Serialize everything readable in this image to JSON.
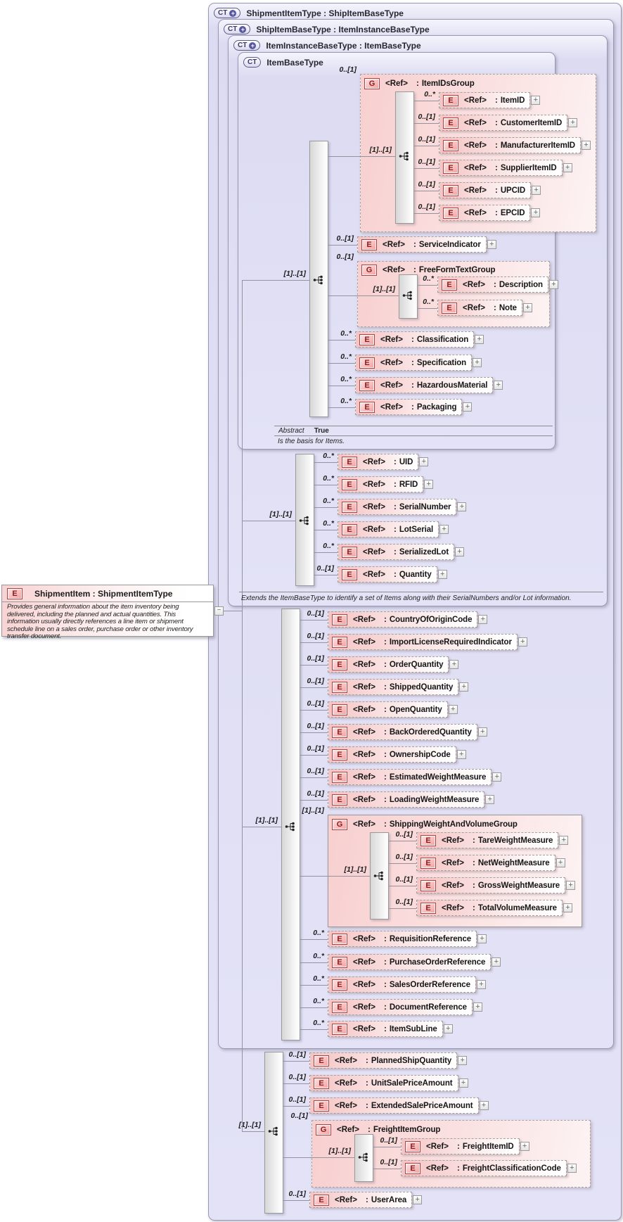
{
  "labels": {
    "ref": "<Ref>",
    "colon": ":",
    "expand": "+",
    "collapse": "−"
  },
  "badges": {
    "element": "E",
    "group": "G"
  },
  "shipment_item_box": {
    "badge": "E",
    "title": "ShipmentItem : ShipmentItemType",
    "description": "Provides general information about the item inventory being delivered, including the planned and actual quantities.  This information usually directly references a line item or shipment schedule line on a sales order, purchase order or other inventory transfer document."
  },
  "containers": [
    {
      "id": "l1",
      "badge": "CT",
      "plus": "+",
      "title": "ShipmentItemType : ShipItemBaseType"
    },
    {
      "id": "l2",
      "badge": "CT",
      "plus": "+",
      "title": "ShipItemBaseType : ItemInstanceBaseType"
    },
    {
      "id": "l3",
      "badge": "CT",
      "plus": "+",
      "title": "ItemInstanceBaseType : ItemBaseType"
    },
    {
      "id": "l4",
      "badge": "CT",
      "title": "ItemBaseType"
    }
  ],
  "sequences": [
    {
      "id": "seq_itembase",
      "cardinality": "[1]..[1]"
    },
    {
      "id": "seq_iteminstance",
      "cardinality": "[1]..[1]"
    },
    {
      "id": "seq_shipitem",
      "cardinality": "[1]..[1]"
    },
    {
      "id": "seq_shipmentitem",
      "cardinality": "[1]..[1]"
    },
    {
      "id": "seq_itemids",
      "cardinality": "[1]..[1]"
    },
    {
      "id": "seq_freeform",
      "cardinality": "[1]..[1]"
    },
    {
      "id": "seq_shipweight",
      "cardinality": "[1]..[1]"
    },
    {
      "id": "seq_freight",
      "cardinality": "[1]..[1]"
    }
  ],
  "groups": [
    {
      "id": "g_itemids",
      "name": "ItemIDsGroup",
      "cardinality": "0..[1]"
    },
    {
      "id": "g_freeform",
      "name": "FreeFormTextGroup",
      "cardinality": "0..[1]"
    },
    {
      "id": "g_shipweight",
      "name": "ShippingWeightAndVolumeGroup",
      "cardinality": "[1]..[1]"
    },
    {
      "id": "g_freight",
      "name": "FreightItemGroup",
      "cardinality": "0..[1]"
    }
  ],
  "elements": [
    {
      "id": "itemid",
      "name": "ItemID",
      "cardinality": "0..*"
    },
    {
      "id": "customeritemid",
      "name": "CustomerItemID",
      "cardinality": "0..[1]"
    },
    {
      "id": "manufactureritemid",
      "name": "ManufacturerItemID",
      "cardinality": "0..[1]"
    },
    {
      "id": "supplieritemid",
      "name": "SupplierItemID",
      "cardinality": "0..[1]"
    },
    {
      "id": "upcid",
      "name": "UPCID",
      "cardinality": "0..[1]"
    },
    {
      "id": "epcid",
      "name": "EPCID",
      "cardinality": "0..[1]"
    },
    {
      "id": "serviceindicator",
      "name": "ServiceIndicator",
      "cardinality": "0..[1]"
    },
    {
      "id": "description",
      "name": "Description",
      "cardinality": "0..*"
    },
    {
      "id": "note",
      "name": "Note",
      "cardinality": "0..*"
    },
    {
      "id": "classification",
      "name": "Classification",
      "cardinality": "0..*"
    },
    {
      "id": "specification",
      "name": "Specification",
      "cardinality": "0..*"
    },
    {
      "id": "hazardousmaterial",
      "name": "HazardousMaterial",
      "cardinality": "0..*"
    },
    {
      "id": "packaging",
      "name": "Packaging",
      "cardinality": "0..*"
    },
    {
      "id": "uid",
      "name": "UID",
      "cardinality": "0..*"
    },
    {
      "id": "rfid",
      "name": "RFID",
      "cardinality": "0..*"
    },
    {
      "id": "serialnumber",
      "name": "SerialNumber",
      "cardinality": "0..*"
    },
    {
      "id": "lotserial",
      "name": "LotSerial",
      "cardinality": "0..*"
    },
    {
      "id": "serializedlot",
      "name": "SerializedLot",
      "cardinality": "0..*"
    },
    {
      "id": "quantity",
      "name": "Quantity",
      "cardinality": "0..[1]"
    },
    {
      "id": "countryoforigincode",
      "name": "CountryOfOriginCode",
      "cardinality": "0..[1]"
    },
    {
      "id": "importlicenserequiredindicator",
      "name": "ImportLicenseRequiredIndicator",
      "cardinality": "0..[1]"
    },
    {
      "id": "orderquantity",
      "name": "OrderQuantity",
      "cardinality": "0..[1]"
    },
    {
      "id": "shippedquantity",
      "name": "ShippedQuantity",
      "cardinality": "0..[1]"
    },
    {
      "id": "openquantity",
      "name": "OpenQuantity",
      "cardinality": "0..[1]"
    },
    {
      "id": "backorderedquantity",
      "name": "BackOrderedQuantity",
      "cardinality": "0..[1]"
    },
    {
      "id": "ownershipcode",
      "name": "OwnershipCode",
      "cardinality": "0..[1]"
    },
    {
      "id": "estimatedweightmeasure",
      "name": "EstimatedWeightMeasure",
      "cardinality": "0..[1]"
    },
    {
      "id": "loadingweightmeasure",
      "name": "LoadingWeightMeasure",
      "cardinality": "0..[1]"
    },
    {
      "id": "tareweightmeasure",
      "name": "TareWeightMeasure",
      "cardinality": "0..[1]"
    },
    {
      "id": "netweightmeasure",
      "name": "NetWeightMeasure",
      "cardinality": "0..[1]"
    },
    {
      "id": "grossweightmeasure",
      "name": "GrossWeightMeasure",
      "cardinality": "0..[1]"
    },
    {
      "id": "totalvolumemeasure",
      "name": "TotalVolumeMeasure",
      "cardinality": "0..[1]"
    },
    {
      "id": "requisitionreference",
      "name": "RequisitionReference",
      "cardinality": "0..*"
    },
    {
      "id": "purchaseorderreference",
      "name": "PurchaseOrderReference",
      "cardinality": "0..*"
    },
    {
      "id": "salesorderreference",
      "name": "SalesOrderReference",
      "cardinality": "0..*"
    },
    {
      "id": "documentreference",
      "name": "DocumentReference",
      "cardinality": "0..*"
    },
    {
      "id": "itemsubline",
      "name": "ItemSubLine",
      "cardinality": "0..*"
    },
    {
      "id": "plannedshipquantity",
      "name": "PlannedShipQuantity",
      "cardinality": "0..[1]"
    },
    {
      "id": "unitsalepriceamount",
      "name": "UnitSalePriceAmount",
      "cardinality": "0..[1]"
    },
    {
      "id": "extendedsalepriceamount",
      "name": "ExtendedSalePriceAmount",
      "cardinality": "0..[1]"
    },
    {
      "id": "freightitemid",
      "name": "FreightItemID",
      "cardinality": "0..[1]"
    },
    {
      "id": "freightclassificationcode",
      "name": "FreightClassificationCode",
      "cardinality": "0..[1]"
    },
    {
      "id": "userarea",
      "name": "UserArea",
      "cardinality": "0..[1]"
    }
  ],
  "notes": {
    "abstract_label": "Abstract",
    "abstract_value": "True",
    "itembase_doc": "Is the basis for Items.",
    "iteminstance_doc": "Extends the ItemBaseType to identify a set of Items along with their SerialNumbers and/or Lot information."
  },
  "colors": {
    "container_fill": "#dcdbf2",
    "container_border": "#9898b4",
    "element_fill": "#f5c4c4",
    "group_fill": "#f8cfcf",
    "badge_border": "#b43e3e",
    "line": "#93939f",
    "text": "#1c1c1c"
  }
}
